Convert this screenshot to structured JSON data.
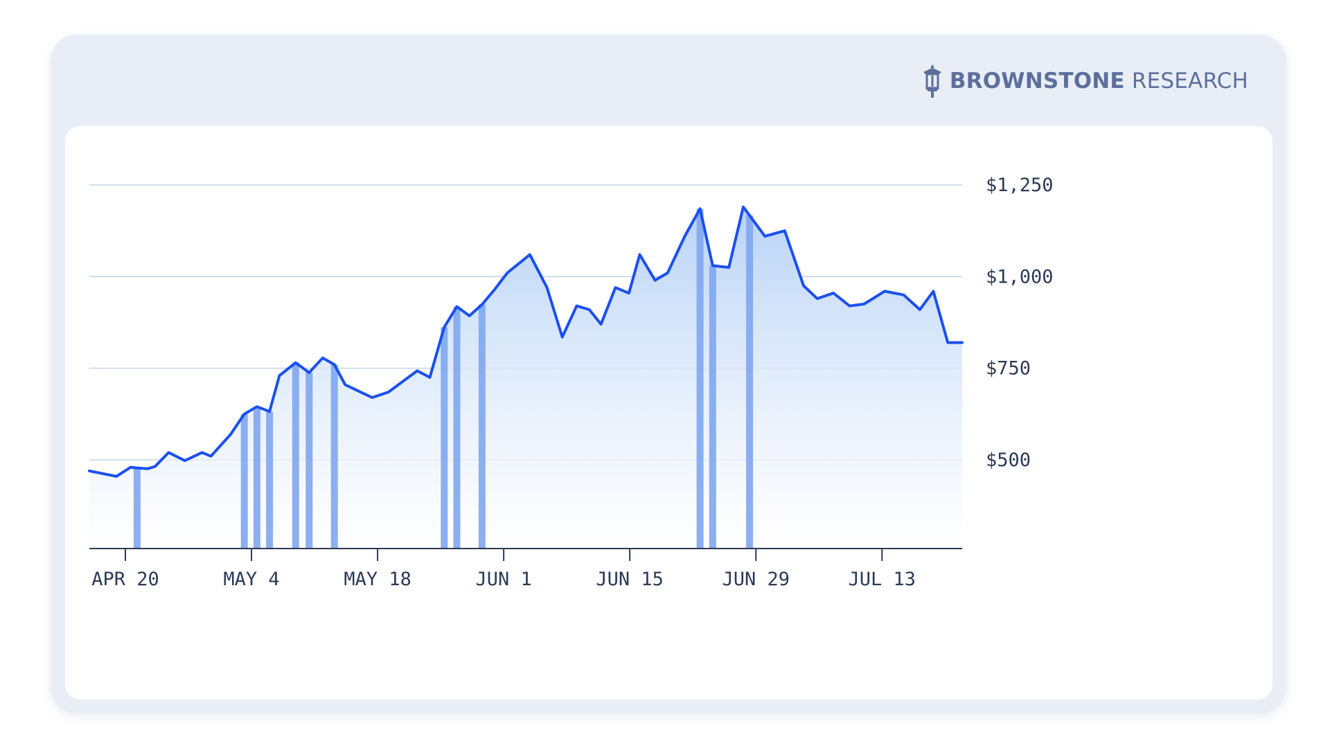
{
  "brand": {
    "name_bold": "BROWNSTONE",
    "name_light": "RESEARCH",
    "icon": "lantern-icon"
  },
  "colors": {
    "line": "#1a4ff0",
    "bar": "#7fa6ef",
    "fill_top": "#b4d0f6",
    "grid": "#c3d3ec",
    "axis": "#2b3a55"
  },
  "chart_data": {
    "type": "area",
    "grid": true,
    "x_start": "Apr 16",
    "ylim": [
      0,
      1250
    ],
    "y_ticks": [
      {
        "value": 500,
        "label": "$500"
      },
      {
        "value": 750,
        "label": "$750"
      },
      {
        "value": 1000,
        "label": "$1,000"
      },
      {
        "value": 1250,
        "label": "$1,250"
      }
    ],
    "x_ticks": [
      {
        "day": 4,
        "label": "APR 20"
      },
      {
        "day": 18,
        "label": "MAY 4"
      },
      {
        "day": 32,
        "label": "MAY 18"
      },
      {
        "day": 46,
        "label": "JUN 1"
      },
      {
        "day": 60,
        "label": "JUN 15"
      },
      {
        "day": 74,
        "label": "JUN 29"
      },
      {
        "day": 88,
        "label": "JUL 13"
      }
    ],
    "x": [
      0,
      3,
      4.6,
      5.3,
      6.5,
      7.3,
      8.8,
      10.6,
      12.5,
      13.5,
      15.7,
      17.2,
      18.6,
      20.0,
      21.1,
      22.9,
      24.4,
      25.9,
      27.2,
      28.4,
      31.4,
      33.2,
      36.4,
      37.8,
      39.4,
      40.8,
      42.2,
      43.6,
      45.0,
      46.4,
      48.9,
      50.8,
      52.5,
      54.1,
      55.5,
      56.8,
      58.4,
      59.9,
      61.1,
      62.8,
      64.2,
      66.1,
      67.8,
      69.2,
      71.0,
      72.6,
      75.0,
      77.2,
      79.3,
      80.8,
      82.6,
      84.4,
      86.0,
      88.3,
      90.4,
      92.2,
      93.7,
      95.3,
      96.9
    ],
    "values": [
      470,
      455,
      480,
      478,
      476,
      482,
      520,
      498,
      520,
      510,
      570,
      625,
      645,
      632,
      730,
      765,
      738,
      778,
      760,
      705,
      670,
      685,
      743,
      725,
      862,
      918,
      893,
      924,
      965,
      1010,
      1060,
      970,
      835,
      920,
      910,
      870,
      970,
      955,
      1060,
      990,
      1010,
      1110,
      1185,
      1030,
      1025,
      1190,
      1110,
      1125,
      975,
      940,
      955,
      920,
      925,
      960,
      950,
      910,
      960,
      820,
      820
    ],
    "highlight_days": [
      5.3,
      17.2,
      18.6,
      20.0,
      22.9,
      24.4,
      27.2,
      39.4,
      40.8,
      43.6,
      67.8,
      69.2,
      73.3
    ]
  }
}
